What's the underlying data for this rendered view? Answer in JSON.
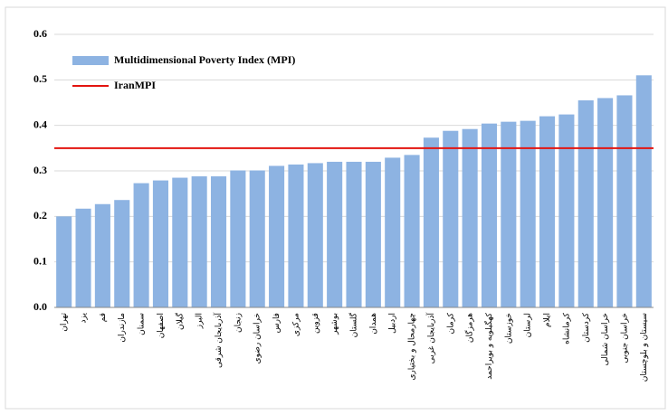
{
  "chart_data": {
    "type": "bar",
    "categories": [
      "تهران",
      "یزد",
      "قم",
      "مازندران",
      "سمنان",
      "اصفهان",
      "گیلان",
      "البرز",
      "آذربایجان شرقی",
      "زنجان",
      "خراسان رضوی",
      "فارس",
      "مرکزی",
      "قزوین",
      "بوشهر",
      "گلستان",
      "همدان",
      "اردبیل",
      "چهارمحال و بختیاری",
      "آذربایجان غربی",
      "کرمان",
      "هرمزگان",
      "کهگیلویه و بویراحمد",
      "خوزستان",
      "لرستان",
      "ایلام",
      "کرمانشاه",
      "کردستان",
      "خراسان شمالی",
      "خراسان جنوبی",
      "سیستان و بلوچستان"
    ],
    "series": [
      {
        "name": "Multidimensional Poverty Index (MPI)",
        "color": "#8db3e2",
        "values": [
          0.2,
          0.217,
          0.227,
          0.236,
          0.273,
          0.279,
          0.285,
          0.288,
          0.288,
          0.301,
          0.301,
          0.311,
          0.314,
          0.317,
          0.32,
          0.32,
          0.32,
          0.329,
          0.335,
          0.373,
          0.388,
          0.392,
          0.404,
          0.408,
          0.41,
          0.42,
          0.424,
          0.455,
          0.46,
          0.466,
          0.51
        ]
      }
    ],
    "reference_line": {
      "name": "IranMPI",
      "value": 0.35,
      "color": "#e3140f"
    },
    "ylim": [
      0,
      0.6
    ],
    "yticks": [
      {
        "value": 0,
        "label": "0.0"
      },
      0.1,
      0.2,
      0.3,
      0.4,
      0.5,
      0.6
    ],
    "grid": true
  }
}
